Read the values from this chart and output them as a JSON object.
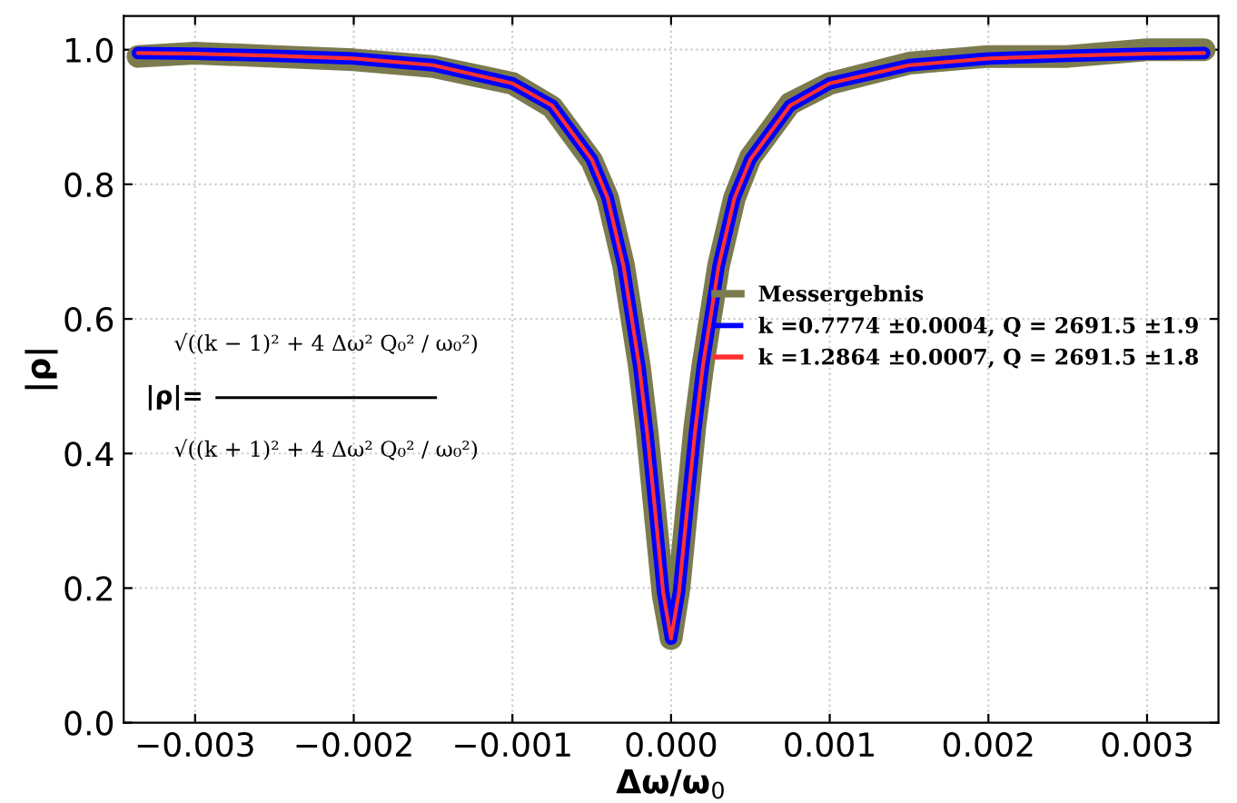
{
  "chart_data": {
    "type": "line",
    "xlabel": "Δω/ω$_{0}$",
    "ylabel": "|ρ|",
    "xlim": [
      -0.00345,
      0.00345
    ],
    "ylim": [
      0,
      1.05
    ],
    "xticks": [
      {
        "value": -0.003,
        "label": "−0.003"
      },
      {
        "value": -0.002,
        "label": "−0.002"
      },
      {
        "value": -0.001,
        "label": "−0.001"
      },
      {
        "value": 0,
        "label": "0.000"
      },
      {
        "value": 0.001,
        "label": "0.001"
      },
      {
        "value": 0.002,
        "label": "0.002"
      },
      {
        "value": 0.003,
        "label": "0.003"
      }
    ],
    "yticks": [
      {
        "value": 0,
        "label": "0.0"
      },
      {
        "value": 0.2,
        "label": "0.2"
      },
      {
        "value": 0.4,
        "label": "0.4"
      },
      {
        "value": 0.6,
        "label": "0.6"
      },
      {
        "value": 0.8,
        "label": "0.8"
      },
      {
        "value": 1,
        "label": "1.0"
      }
    ],
    "grid": true,
    "legend": "right",
    "marker": "none",
    "line_style": "solid",
    "x": [
      -0.00336,
      -0.003,
      -0.0025,
      -0.002,
      -0.0015,
      -0.001,
      -0.00075,
      -0.0005,
      -0.0004,
      -0.0003,
      -0.0002,
      -0.00015,
      -0.0001,
      -5e-05,
      0,
      5e-05,
      0.0001,
      0.00015,
      0.0002,
      0.0003,
      0.0004,
      0.0005,
      0.00075,
      0.001,
      0.0015,
      0.002,
      0.0025,
      0.003,
      0.00336
    ],
    "series": [
      {
        "name": "Messergebnis",
        "color": "#7b7b4e",
        "values": [
          0.99,
          0.995,
          0.99,
          0.985,
          0.975,
          0.95,
          0.915,
          0.835,
          0.78,
          0.68,
          0.53,
          0.43,
          0.31,
          0.19,
          0.125,
          0.2,
          0.32,
          0.44,
          0.53,
          0.68,
          0.78,
          0.84,
          0.92,
          0.95,
          0.98,
          0.99,
          0.99,
          1.0,
          1.0
        ]
      },
      {
        "name": "k =0.7774 ±0.0004, Q = 2691.5 ±1.9",
        "color": "#0000ff",
        "values": [
          0.995,
          0.994,
          0.991,
          0.987,
          0.977,
          0.95,
          0.917,
          0.837,
          0.78,
          0.679,
          0.529,
          0.43,
          0.314,
          0.194,
          0.125,
          0.194,
          0.314,
          0.43,
          0.529,
          0.679,
          0.78,
          0.837,
          0.917,
          0.95,
          0.977,
          0.987,
          0.991,
          0.994,
          0.995
        ]
      },
      {
        "name": "k =1.2864 ±0.0007, Q = 2691.5 ±1.8",
        "color": "#ff3030",
        "values": [
          0.995,
          0.994,
          0.991,
          0.987,
          0.977,
          0.95,
          0.917,
          0.837,
          0.78,
          0.679,
          0.529,
          0.43,
          0.314,
          0.194,
          0.125,
          0.194,
          0.314,
          0.43,
          0.529,
          0.679,
          0.78,
          0.837,
          0.917,
          0.95,
          0.977,
          0.987,
          0.991,
          0.994,
          0.995
        ]
      }
    ],
    "annotations": [
      "|ρ|=",
      "√((k − 1)² + 4 Δω² Q₀² / ω₀²)",
      "√((k + 1)² + 4 Δω² Q₀² / ω₀²)"
    ]
  }
}
